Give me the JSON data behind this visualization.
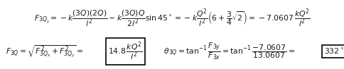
{
  "line1": "$F_{3Q_y} = -k\\dfrac{(3Q)(2Q)}{l^2} - k\\dfrac{(3Q)Q}{2l^2}\\sin 45^\\circ = -k\\dfrac{Q^2}{l^2}\\left(6 + \\dfrac{3}{4}\\sqrt{2}\\right) = -7.0607\\,\\dfrac{kQ^2}{l^2}$",
  "line2_part1": "$F_{3Q} = \\sqrt{F_{3Q_x}^{\\,2} + F_{3Q_y}^{\\,2}} = $",
  "line2_box1": "$14.8\\,\\dfrac{kQ^2}{l^2}$",
  "line2_part2": "$\\quad\\theta_{3Q} = \\tan^{-1}\\dfrac{F_{3y}}{F_{3x}} = \\tan^{-1}\\dfrac{-7.0607}{13.0607} = $",
  "line2_box2": "$332^\\circ$",
  "bg_color": "#ffffff",
  "text_color": "#1a1a1a",
  "box_color": "#000000",
  "fontsize_line1": 7.8,
  "fontsize_line2": 7.8,
  "fig_width": 4.85,
  "fig_height": 0.98,
  "dpi": 100
}
